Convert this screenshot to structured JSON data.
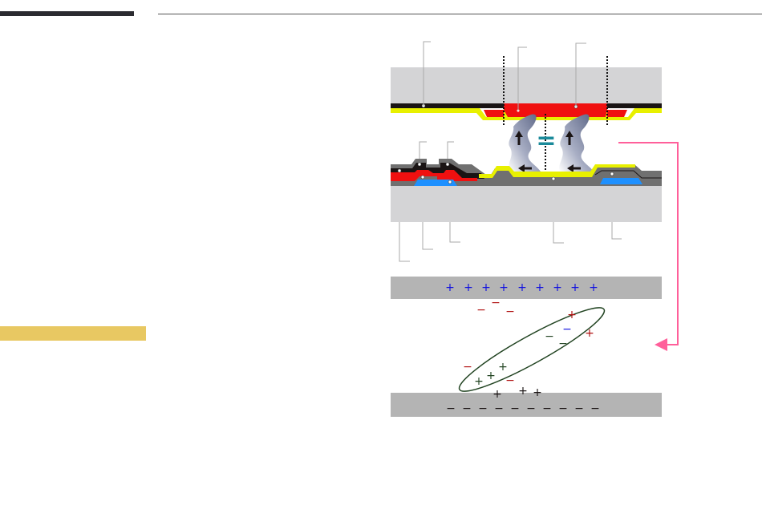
{
  "colors": {
    "sidebar_bar": "#2b2b30",
    "sidebar_highlight": "#e8c862",
    "glass": "#d4d4d6",
    "black_matrix": "#1a1414",
    "color_filter_red": "#f01010",
    "alignment_layer": "#e8f000",
    "electrode_blue": "#1e90ff",
    "insulator_gray": "#707070",
    "pointer_pink": "#ff5f9a",
    "plate_gray": "#b4b4b4",
    "molecule_outline": "#224422",
    "equal_sign": "#1a8a9a"
  },
  "charges": {
    "top_plate": [
      {
        "sym": "+",
        "color": "#1010e0"
      },
      {
        "sym": "+",
        "color": "#1010e0"
      },
      {
        "sym": "+",
        "color": "#1010e0"
      },
      {
        "sym": "+",
        "color": "#1010e0"
      },
      {
        "sym": "+",
        "color": "#1010e0"
      },
      {
        "sym": "+",
        "color": "#1010e0"
      },
      {
        "sym": "+",
        "color": "#1010e0"
      },
      {
        "sym": "+",
        "color": "#1010e0"
      },
      {
        "sym": "+",
        "color": "#1010e0"
      }
    ],
    "bottom_plate": [
      "−",
      "−",
      "−",
      "−",
      "−",
      "−",
      "−",
      "−",
      "−",
      "−"
    ],
    "free": [
      {
        "sym": "−",
        "color": "#b01010"
      },
      {
        "sym": "−",
        "color": "#b01010"
      },
      {
        "sym": "−",
        "color": "#b01010"
      },
      {
        "sym": "+",
        "color": "#b01010"
      },
      {
        "sym": "+",
        "color": "#b01010"
      },
      {
        "sym": "−",
        "color": "#1010e0"
      },
      {
        "sym": "−",
        "color": "#224422"
      },
      {
        "sym": "−",
        "color": "#224422"
      },
      {
        "sym": "−",
        "color": "#b01010"
      },
      {
        "sym": "+",
        "color": "#224422"
      },
      {
        "sym": "+",
        "color": "#224422"
      },
      {
        "sym": "+",
        "color": "#224422"
      },
      {
        "sym": "−",
        "color": "#b01010"
      },
      {
        "sym": "+",
        "color": "#1a1414"
      },
      {
        "sym": "+",
        "color": "#1a1414"
      },
      {
        "sym": "+",
        "color": "#1a1414"
      }
    ]
  },
  "equal_symbol": "="
}
